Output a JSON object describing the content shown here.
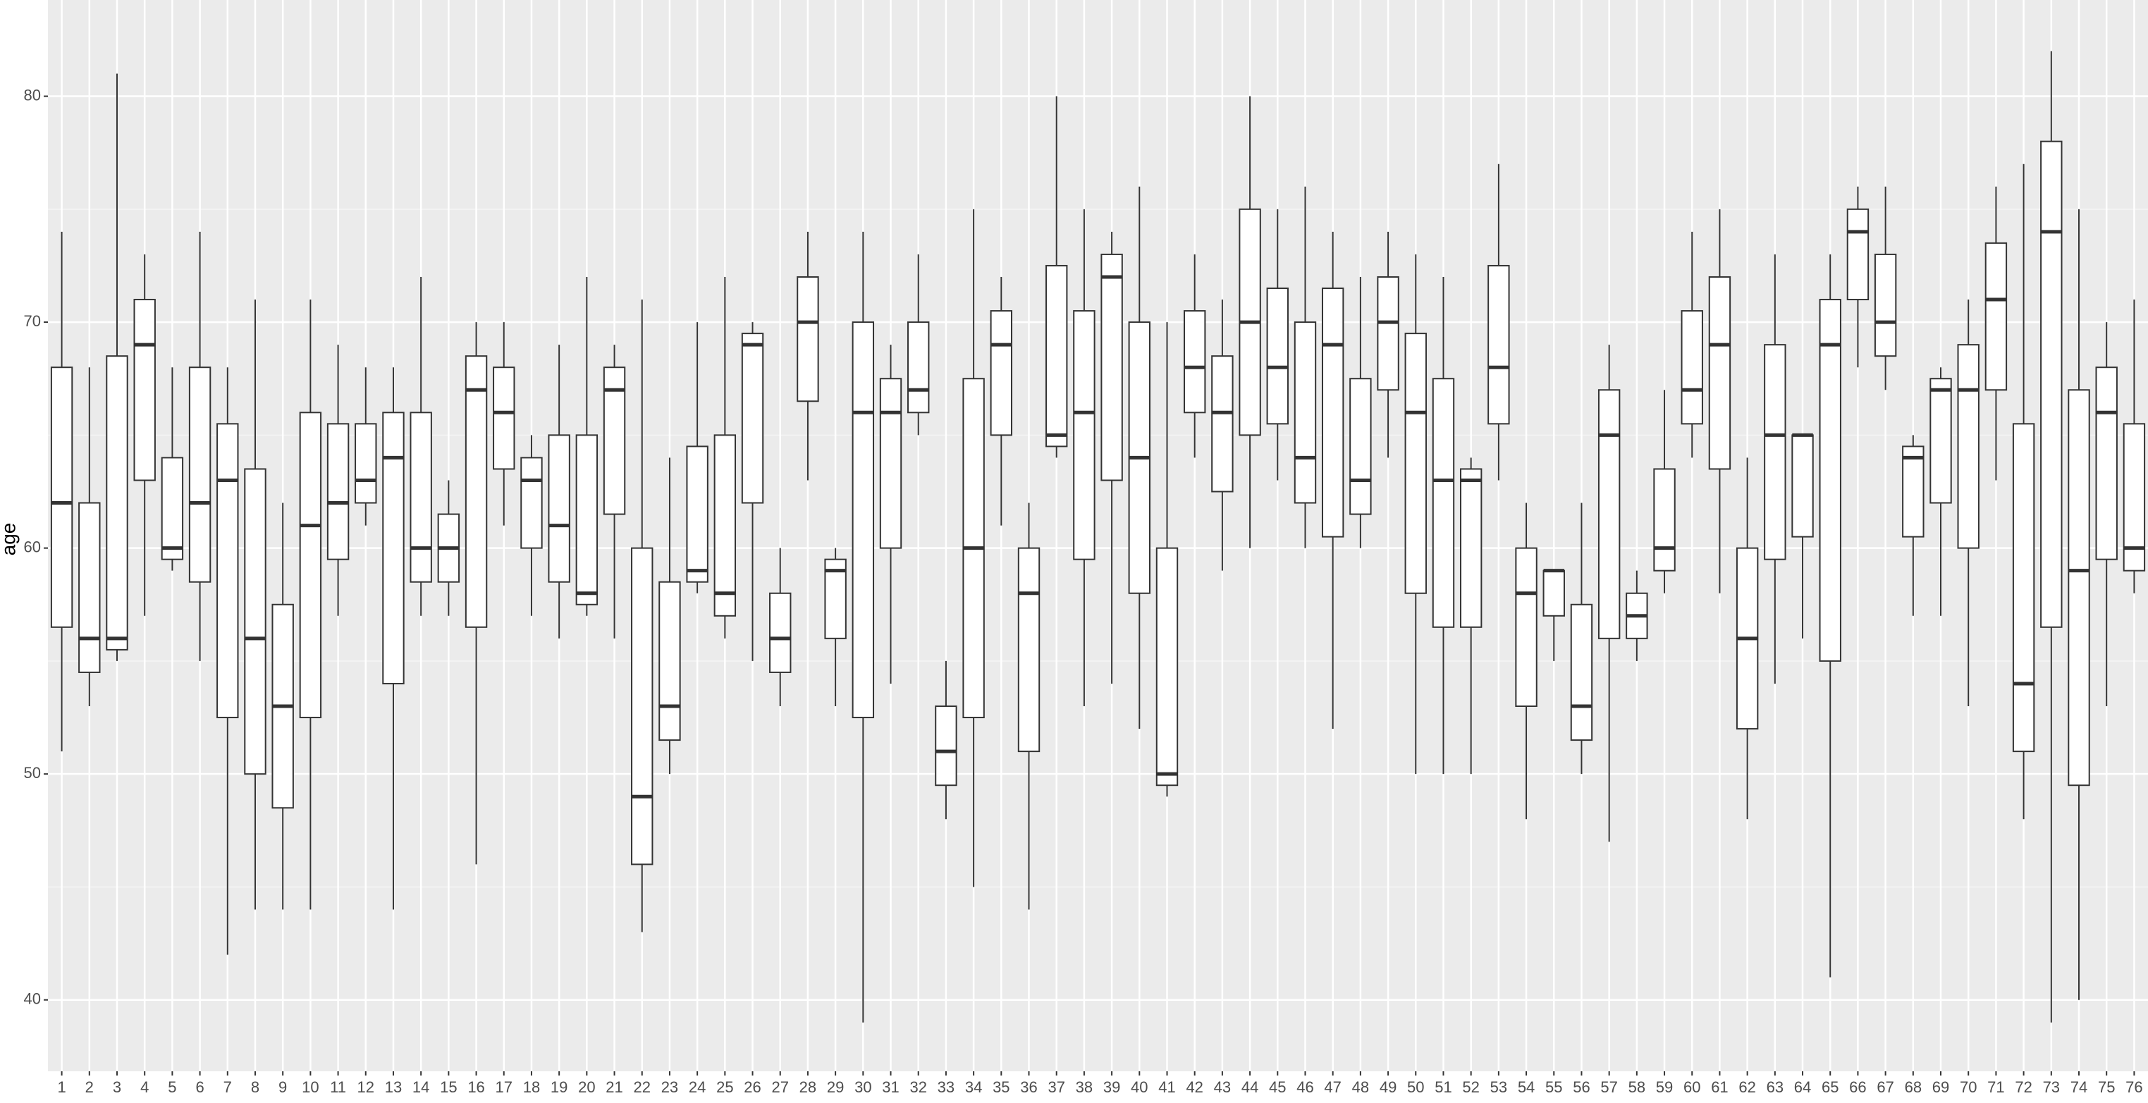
{
  "chart_data": {
    "type": "boxplot",
    "y_label": "age",
    "categories": [
      "1",
      "2",
      "3",
      "4",
      "5",
      "6",
      "7",
      "8",
      "9",
      "10",
      "11",
      "12",
      "13",
      "14",
      "15",
      "16",
      "17",
      "18",
      "19",
      "20",
      "21",
      "22",
      "23",
      "24",
      "25",
      "26",
      "27",
      "28",
      "29",
      "30",
      "31",
      "32",
      "33",
      "34",
      "35",
      "36",
      "37",
      "38",
      "39",
      "40",
      "41",
      "42",
      "43",
      "44",
      "45",
      "46",
      "47",
      "48",
      "49",
      "50",
      "51",
      "52",
      "53",
      "54",
      "55",
      "56",
      "57",
      "58",
      "59",
      "60",
      "61",
      "62",
      "63",
      "64",
      "65",
      "66",
      "67",
      "68",
      "69",
      "70",
      "71",
      "72",
      "73",
      "74",
      "75",
      "76"
    ],
    "min": [
      51,
      53,
      55,
      57,
      59,
      55,
      42,
      44,
      44,
      44,
      57,
      61,
      44,
      57,
      57,
      46,
      61,
      57,
      56,
      57,
      56,
      43,
      50,
      58,
      56,
      55,
      53,
      63,
      53,
      39,
      54,
      65,
      48,
      45,
      61,
      44,
      64,
      53,
      54,
      52,
      49,
      64,
      59,
      60,
      63,
      60,
      52,
      60,
      64,
      50,
      50,
      50,
      63,
      48,
      55,
      50,
      47,
      55,
      58,
      64,
      58,
      48,
      54,
      56,
      41,
      68,
      67,
      57,
      57,
      53,
      63,
      48,
      39,
      40,
      53,
      58
    ],
    "q1": [
      56.5,
      54.5,
      55.5,
      63,
      59.5,
      58.5,
      52.5,
      50,
      48.5,
      52.5,
      59.5,
      62,
      54,
      58.5,
      58.5,
      56.5,
      63.5,
      60,
      58.5,
      57.5,
      61.5,
      46,
      51.5,
      58.5,
      57,
      62,
      54.5,
      66.5,
      56,
      52.5,
      60,
      66,
      49.5,
      52.5,
      65,
      51,
      64.5,
      59.5,
      63,
      58,
      49.5,
      66,
      62.5,
      65,
      65.5,
      62,
      60.5,
      61.5,
      67,
      58,
      56.5,
      56.5,
      65.5,
      53,
      57,
      51.5,
      56,
      56,
      59,
      65.5,
      63.5,
      52,
      59.5,
      60.5,
      55,
      71,
      68.5,
      60.5,
      62,
      60,
      67,
      51,
      56.5,
      49.5,
      59.5,
      59
    ],
    "median": [
      62,
      56,
      56,
      69,
      60,
      62,
      63,
      56,
      53,
      61,
      62,
      63,
      64,
      60,
      60,
      67,
      66,
      63,
      61,
      58,
      67,
      49,
      53,
      59,
      58,
      69,
      56,
      70,
      59,
      66,
      66,
      67,
      51,
      60,
      69,
      58,
      65,
      66,
      72,
      64,
      50,
      68,
      66,
      70,
      68,
      64,
      69,
      63,
      70,
      66,
      63,
      63,
      68,
      58,
      59,
      53,
      65,
      57,
      60,
      67,
      69,
      56,
      65,
      65,
      69,
      74,
      70,
      64,
      67,
      67,
      71,
      54,
      74,
      59,
      66,
      60
    ],
    "q3": [
      68,
      62,
      68.5,
      71,
      64,
      68,
      65.5,
      63.5,
      57.5,
      66,
      65.5,
      65.5,
      66,
      66,
      61.5,
      68.5,
      68,
      64,
      65,
      65,
      68,
      60,
      58.5,
      64.5,
      65,
      69.5,
      58,
      72,
      59.5,
      70,
      67.5,
      70,
      53,
      67.5,
      70.5,
      60,
      72.5,
      70.5,
      73,
      70,
      60,
      70.5,
      68.5,
      75,
      71.5,
      70,
      71.5,
      67.5,
      72,
      69.5,
      67.5,
      63.5,
      72.5,
      60,
      59,
      57.5,
      67,
      58,
      63.5,
      70.5,
      72,
      60,
      69,
      65,
      71,
      75,
      73,
      64.5,
      67.5,
      69,
      73.5,
      65.5,
      78,
      67,
      68,
      65.5
    ],
    "max": [
      74,
      68,
      81,
      73,
      68,
      74,
      68,
      71,
      62,
      71,
      69,
      68,
      68,
      72,
      63,
      70,
      70,
      65,
      69,
      72,
      69,
      71,
      64,
      70,
      72,
      70,
      60,
      74,
      60,
      74,
      69,
      73,
      55,
      75,
      72,
      62,
      80,
      75,
      74,
      76,
      70,
      73,
      71,
      80,
      75,
      76,
      74,
      72,
      74,
      73,
      72,
      64,
      77,
      62,
      59,
      62,
      69,
      59,
      67,
      74,
      75,
      64,
      73,
      65,
      73,
      76,
      76,
      65,
      68,
      71,
      76,
      77,
      82,
      75,
      70,
      71
    ],
    "ylim": [
      36.84,
      84.26
    ],
    "yticks": [
      40,
      50,
      60,
      70,
      80
    ],
    "grid": true,
    "box_fill": "#ffffff",
    "line_color": "#333333",
    "panel_color": "#ebebeb"
  }
}
